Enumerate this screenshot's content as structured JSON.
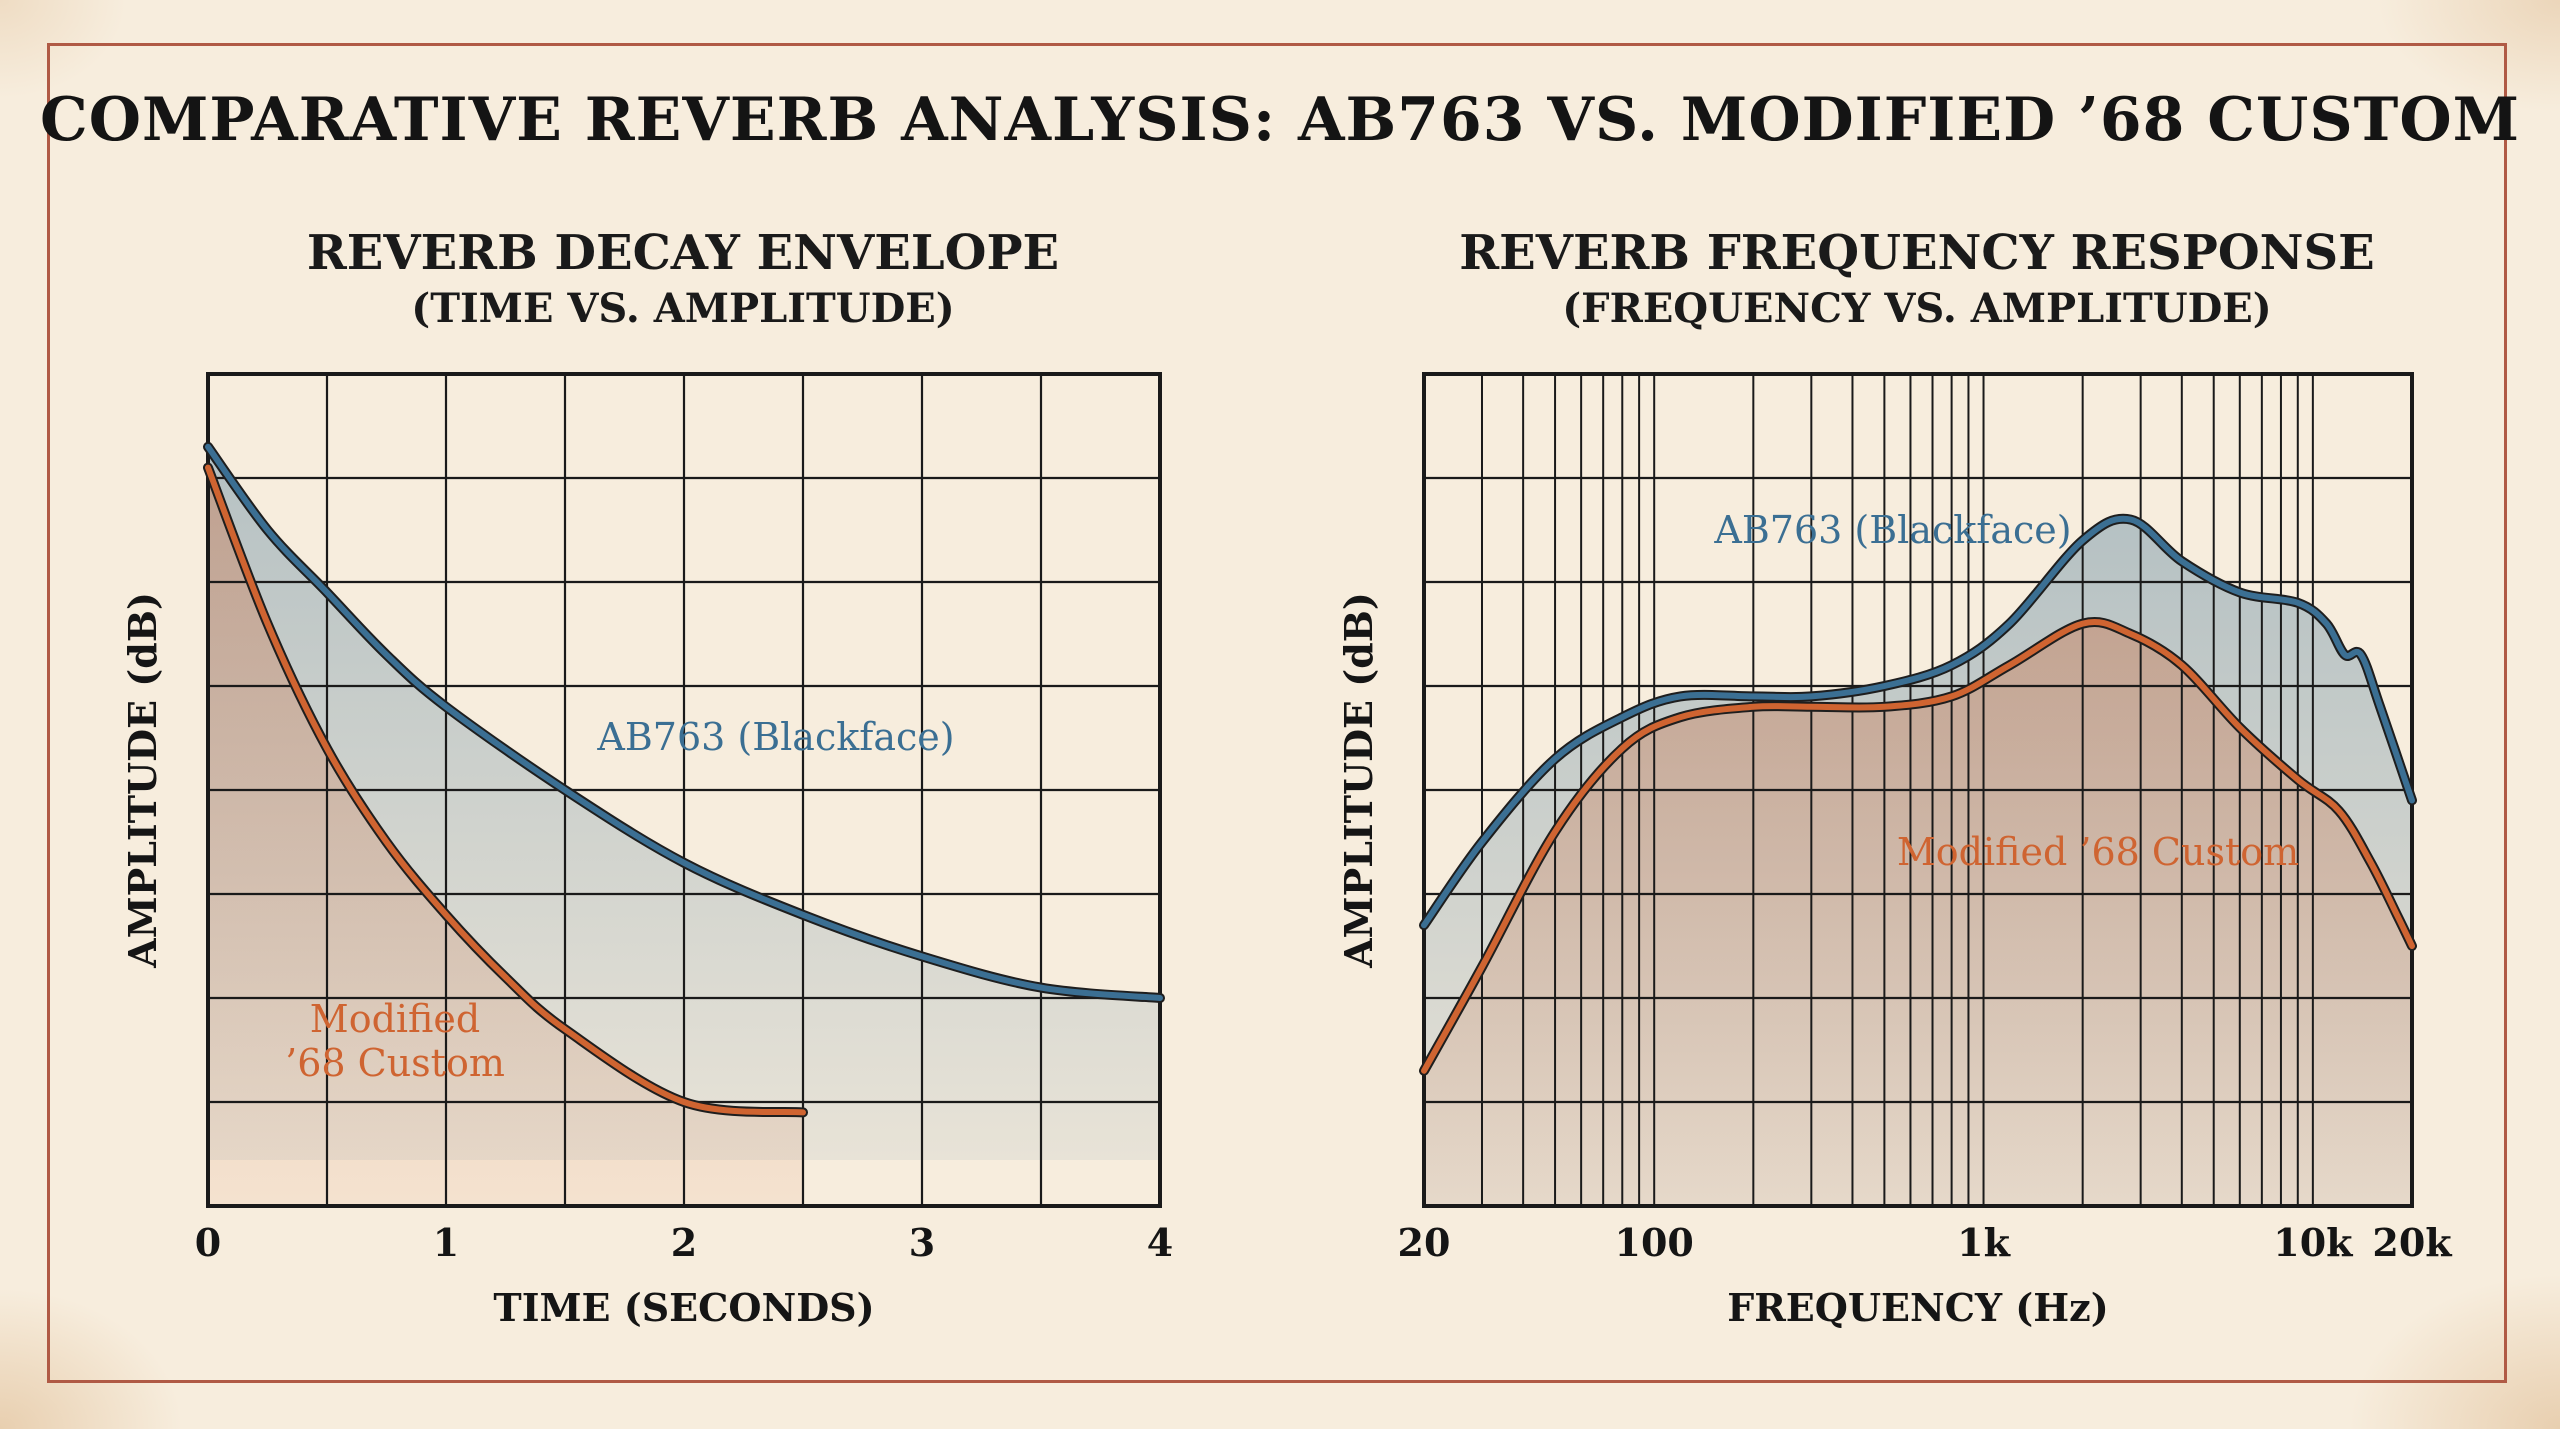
{
  "title": "COMPARATIVE REVERB ANALYSIS: AB763 VS. MODIFIED ’68 CUSTOM",
  "colors": {
    "blue": "#3b6f93",
    "orange": "#cf6431",
    "border": "#b05a45",
    "grid": "#1a1a1a"
  },
  "chart_data": [
    {
      "type": "line",
      "title": "REVERB DECAY ENVELOPE",
      "subtitle": "(TIME VS. AMPLITUDE)",
      "xlabel": "TIME  (SECONDS)",
      "ylabel": "AMPLITUDE (dB)",
      "xlim": [
        0,
        4
      ],
      "ylim": [
        0,
        8
      ],
      "x_ticks": [
        "0",
        "1",
        "2",
        "3",
        "4"
      ],
      "grid": true,
      "series": [
        {
          "name": "AB763 (Blackface)",
          "color": "#3b6f93",
          "x": [
            0,
            0.25,
            0.5,
            0.75,
            1,
            1.5,
            2,
            2.5,
            3,
            3.5,
            4
          ],
          "y": [
            7.3,
            6.5,
            5.9,
            5.3,
            4.8,
            4.0,
            3.3,
            2.8,
            2.4,
            2.1,
            2.0
          ]
        },
        {
          "name": "Modified\n’68 Custom",
          "color": "#cf6431",
          "x": [
            0,
            0.25,
            0.5,
            0.75,
            1,
            1.25,
            1.5,
            2,
            2.5
          ],
          "y": [
            7.1,
            5.6,
            4.4,
            3.5,
            2.8,
            2.2,
            1.7,
            1.0,
            0.9
          ]
        }
      ]
    },
    {
      "type": "line",
      "title": "REVERB FREQUENCY RESPONSE",
      "subtitle": "(FREQUENCY VS. AMPLITUDE)",
      "xlabel": "FREQUENCY  (Hz)",
      "ylabel": "AMPLITUDE (dB)",
      "x_scale": "log",
      "xlim": [
        20,
        20000
      ],
      "ylim": [
        0,
        8
      ],
      "x_ticks": [
        "20",
        "100",
        "1k",
        "10k",
        "20k"
      ],
      "grid": true,
      "series": [
        {
          "name": "AB763 (Blackface)",
          "color": "#3b6f93",
          "x": [
            20,
            30,
            50,
            80,
            120,
            200,
            300,
            500,
            800,
            1200,
            2000,
            2800,
            4000,
            6000,
            9000,
            11000,
            12500,
            14000,
            16000,
            20000
          ],
          "y": [
            2.7,
            3.5,
            4.3,
            4.7,
            4.9,
            4.9,
            4.9,
            5.0,
            5.2,
            5.6,
            6.4,
            6.6,
            6.2,
            5.9,
            5.8,
            5.6,
            5.3,
            5.3,
            4.8,
            3.9
          ]
        },
        {
          "name": "Modified ’68 Custom",
          "color": "#cf6431",
          "x": [
            20,
            30,
            50,
            80,
            120,
            200,
            300,
            500,
            800,
            1200,
            2000,
            2800,
            4000,
            6000,
            9000,
            12000,
            15000,
            18000,
            20000
          ],
          "y": [
            1.3,
            2.3,
            3.6,
            4.4,
            4.7,
            4.8,
            4.8,
            4.8,
            4.9,
            5.2,
            5.6,
            5.5,
            5.2,
            4.6,
            4.1,
            3.8,
            3.3,
            2.8,
            2.5
          ]
        }
      ]
    }
  ]
}
